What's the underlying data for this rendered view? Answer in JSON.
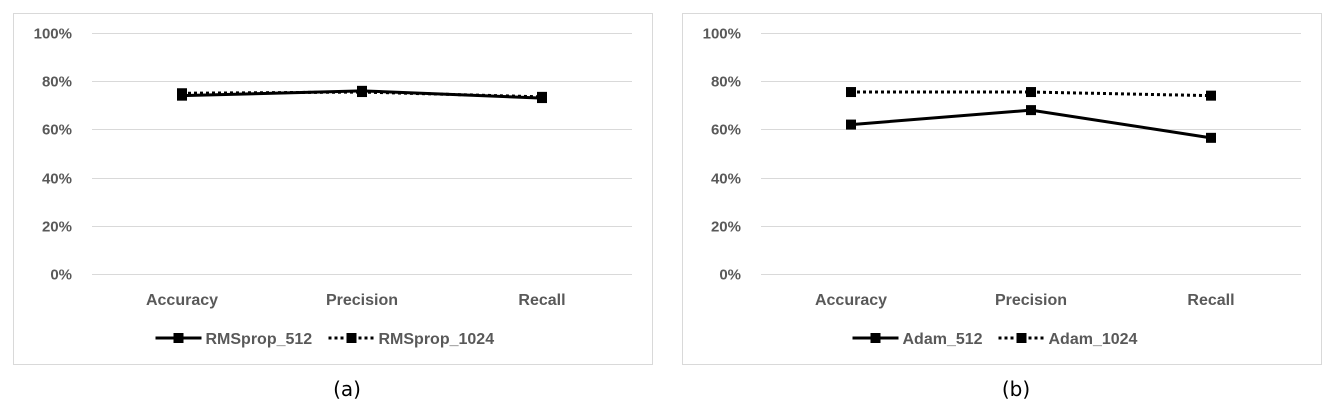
{
  "chart_data": [
    {
      "type": "line",
      "caption": "(a)",
      "categories": [
        "Accuracy",
        "Precision",
        "Recall"
      ],
      "ylim": [
        0,
        100
      ],
      "yticks": [
        0,
        20,
        40,
        60,
        80,
        100
      ],
      "ytick_labels": [
        "0%",
        "20%",
        "40%",
        "60%",
        "80%",
        "100%"
      ],
      "grid": true,
      "legend_position": "bottom",
      "series": [
        {
          "name": "RMSprop_512",
          "values": [
            74,
            76,
            73
          ],
          "style": "solid",
          "color": "#000000"
        },
        {
          "name": "RMSprop_1024",
          "values": [
            75,
            75.5,
            73.5
          ],
          "style": "dotted",
          "color": "#000000"
        }
      ]
    },
    {
      "type": "line",
      "caption": "(b)",
      "categories": [
        "Accuracy",
        "Precision",
        "Recall"
      ],
      "ylim": [
        0,
        100
      ],
      "yticks": [
        0,
        20,
        40,
        60,
        80,
        100
      ],
      "ytick_labels": [
        "0%",
        "20%",
        "40%",
        "60%",
        "80%",
        "100%"
      ],
      "grid": true,
      "legend_position": "bottom",
      "series": [
        {
          "name": "Adam_512",
          "values": [
            62,
            68,
            56.5
          ],
          "style": "solid",
          "color": "#000000"
        },
        {
          "name": "Adam_1024",
          "values": [
            75.5,
            75.5,
            74
          ],
          "style": "dotted",
          "color": "#000000"
        }
      ]
    }
  ],
  "colors": {
    "gridline": "#d9d9d9",
    "frame": "#d9d9d9",
    "text": "#595959",
    "series": "#000000"
  }
}
